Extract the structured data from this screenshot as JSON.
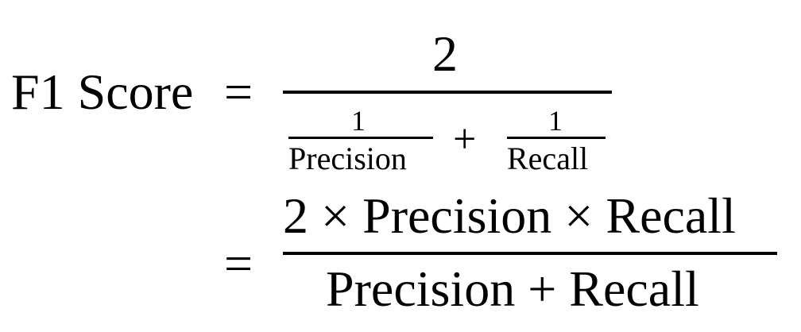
{
  "formula": {
    "lhs": "F1 Score",
    "equals": "=",
    "line1": {
      "numerator": "2",
      "denominator": {
        "term1": {
          "numerator": "1",
          "denominator": "Precision"
        },
        "plus": "+",
        "term2": {
          "numerator": "1",
          "denominator": "Recall"
        }
      }
    },
    "line2": {
      "equals": "=",
      "numerator": "2 × Precision × Recall",
      "denominator": "Precision + Recall"
    }
  }
}
